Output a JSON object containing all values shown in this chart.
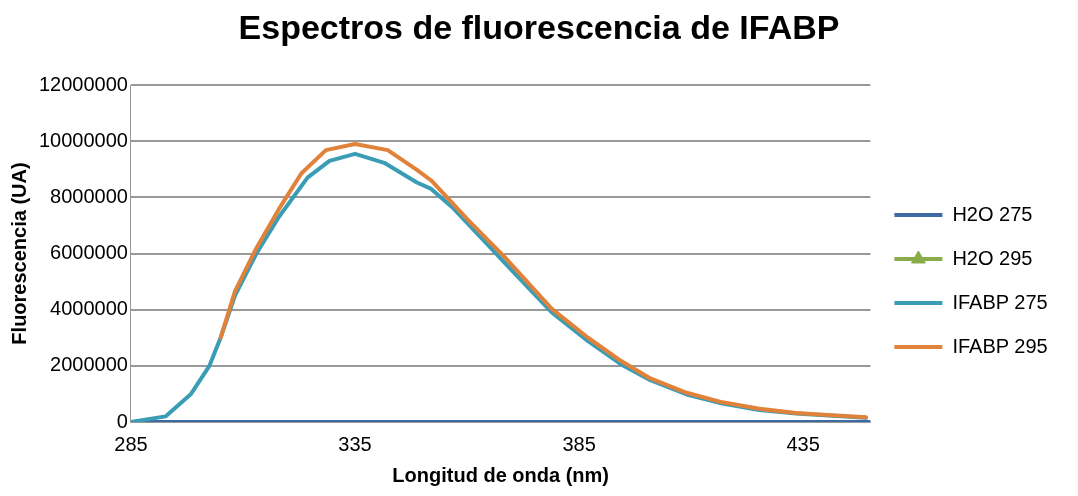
{
  "chart_data": {
    "type": "line",
    "title": "Espectros de fluorescencia de IFABP",
    "xlabel": "Longitud de onda (nm)",
    "ylabel": "Fluorescencia (UA)",
    "xlim": [
      285,
      450
    ],
    "xticks": [
      285,
      335,
      385,
      435
    ],
    "ylim": [
      0,
      12000000
    ],
    "yticks": [
      0,
      2000000,
      4000000,
      6000000,
      8000000,
      10000000,
      12000000
    ],
    "grid": "y",
    "legend": "right",
    "marker": "none",
    "line_style": "solid",
    "series": [
      {
        "name": "H2O 275",
        "color": "#3d6aa3",
        "x": [
          285,
          310,
          335,
          360,
          385,
          410,
          435,
          450
        ],
        "values": [
          0,
          0,
          0,
          0,
          0,
          0,
          0,
          0
        ]
      },
      {
        "name": "H2O 295",
        "color": "#8aab4a",
        "marker": "triangle"
      },
      {
        "name": "IFABP 275",
        "color": "#3b9cb5",
        "x": [
          285,
          292.7,
          298.4,
          302.5,
          305,
          308.2,
          313,
          318,
          324.4,
          329.3,
          335,
          341.5,
          348.8,
          352,
          357,
          368.4,
          378.9,
          387,
          394.3,
          400.9,
          409,
          417,
          425.2,
          433.4,
          441.5,
          449
        ],
        "values": [
          0,
          200000,
          1000000,
          2000000,
          3000000,
          4500000,
          6000000,
          7300000,
          8700000,
          9300000,
          9550000,
          9230000,
          8530000,
          8300000,
          7600000,
          5670000,
          3900000,
          2880000,
          2060000,
          1490000,
          980000,
          660000,
          430000,
          300000,
          220000,
          150000
        ]
      },
      {
        "name": "IFABP 295",
        "color": "#e0823a",
        "x": [
          305,
          308.2,
          313,
          318,
          323,
          328.5,
          335,
          342.3,
          348.8,
          352,
          360.2,
          368.4,
          378.9,
          387,
          394.3,
          400.9,
          409,
          417,
          425.2,
          433.4,
          441.5,
          449
        ],
        "values": [
          3000000,
          4650000,
          6200000,
          7580000,
          8850000,
          9680000,
          9900000,
          9680000,
          8980000,
          8600000,
          7200000,
          5870000,
          4030000,
          3000000,
          2180000,
          1550000,
          1040000,
          700000,
          470000,
          320000,
          240000,
          170000
        ]
      }
    ]
  }
}
